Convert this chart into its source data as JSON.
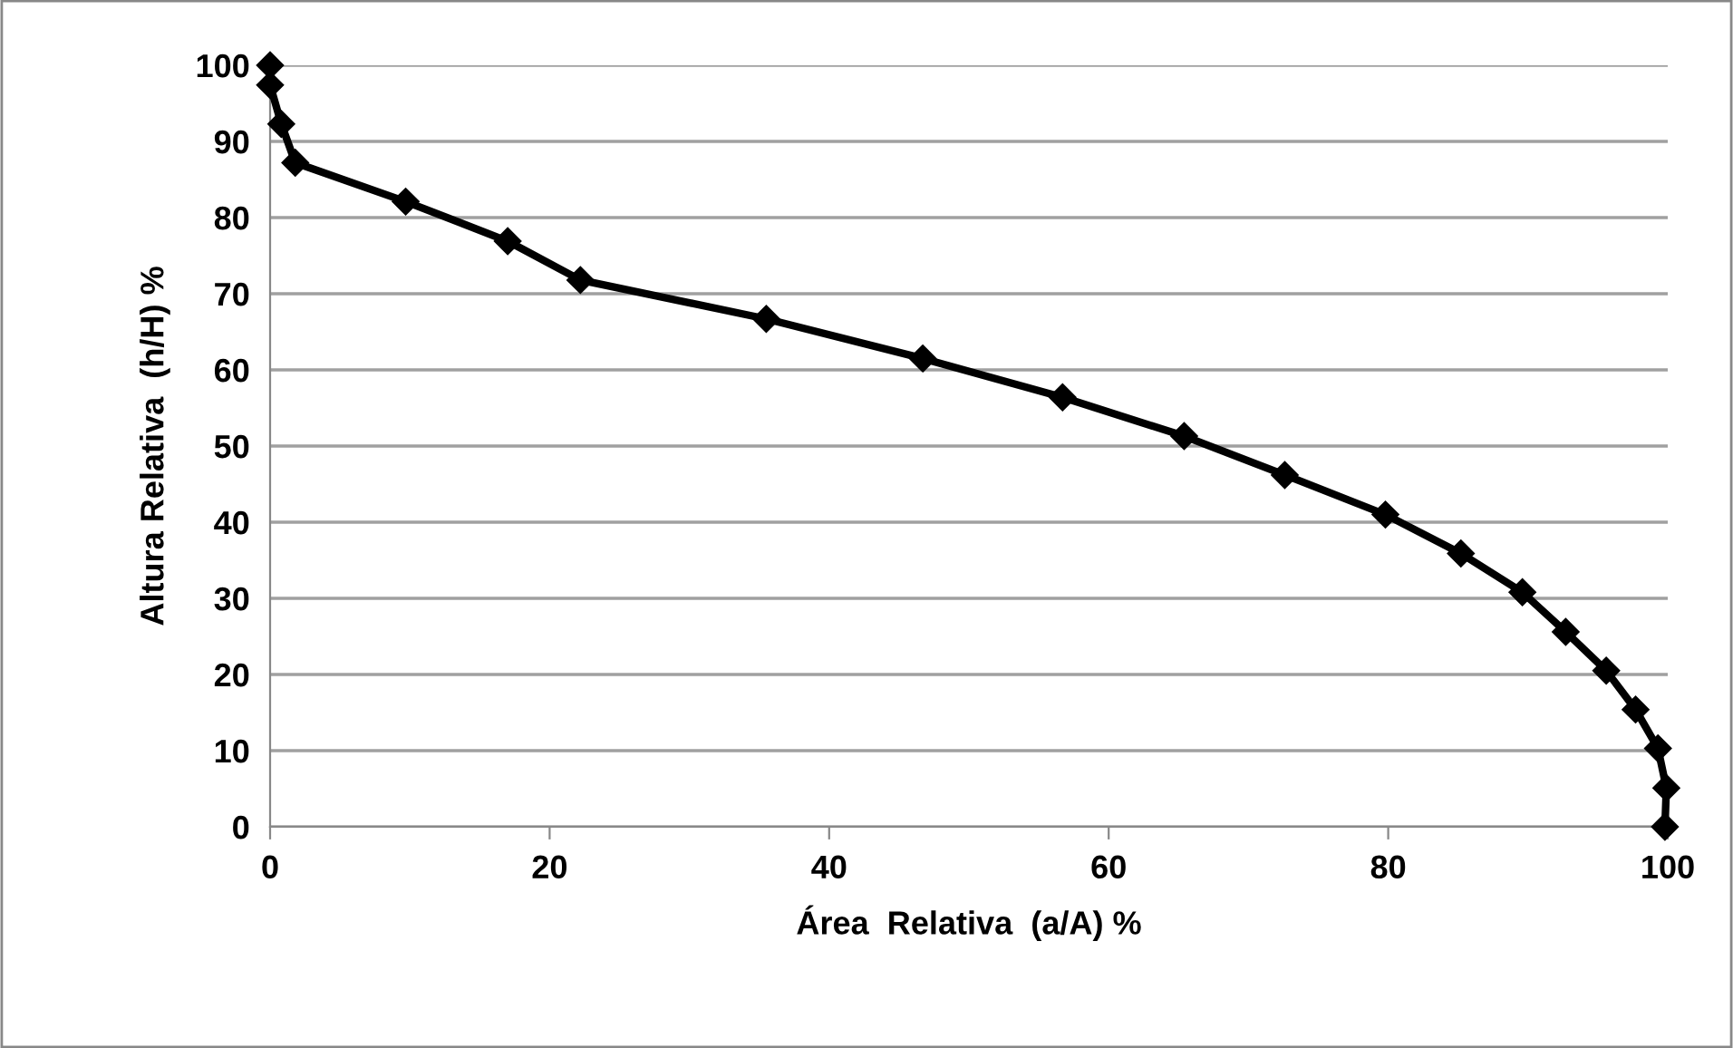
{
  "chart_data": {
    "type": "line",
    "xlabel": "Área  Relativa  (a/A) %",
    "ylabel": "Altura Relativa  (h/H) %",
    "x": [
      0,
      0,
      0.8,
      1.8,
      9.7,
      17,
      22.2,
      35.5,
      46.7,
      56.7,
      65.4,
      72.6,
      79.8,
      85.2,
      89.6,
      92.7,
      95.6,
      97.7,
      99.3,
      99.9,
      99.8
    ],
    "series": [
      {
        "color": "#000000",
        "values": [
          100,
          97.4,
          92.3,
          87.2,
          82.1,
          76.9,
          71.8,
          66.7,
          61.5,
          56.4,
          51.3,
          46.2,
          41.0,
          35.9,
          30.8,
          25.6,
          20.5,
          15.4,
          10.3,
          5.1,
          0
        ]
      }
    ],
    "xlim": [
      0,
      100
    ],
    "ylim": [
      0,
      100
    ],
    "xticks": [
      0,
      20,
      40,
      60,
      80,
      100
    ],
    "yticks": [
      0,
      10,
      20,
      30,
      40,
      50,
      60,
      70,
      80,
      90,
      100
    ],
    "grid": "y",
    "marker": "diamond",
    "line_style": "solid"
  }
}
